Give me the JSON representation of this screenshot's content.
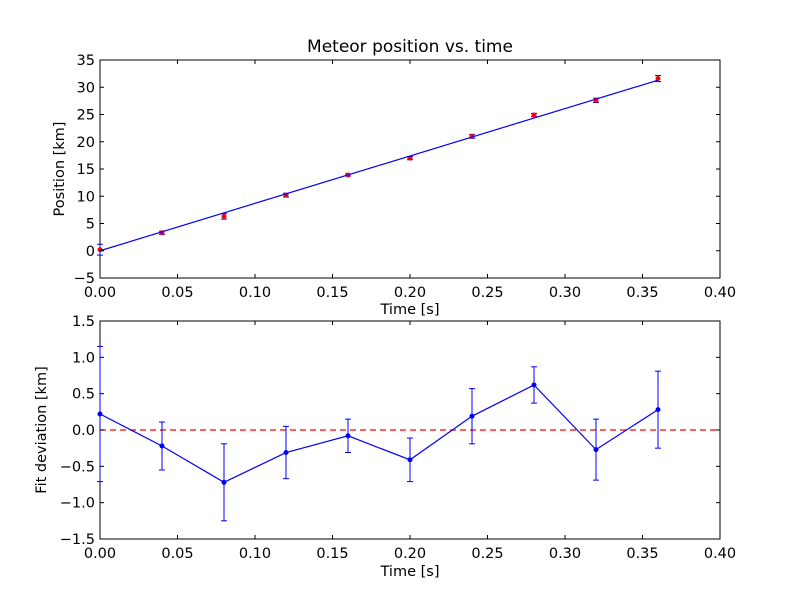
{
  "chart_data": [
    {
      "type": "scatter",
      "title": "Meteor position vs. time",
      "xlabel": "Time [s]",
      "ylabel": "Position [km]",
      "xlim": [
        0.0,
        0.4
      ],
      "ylim": [
        -5,
        35
      ],
      "xticks": [
        0.0,
        0.05,
        0.1,
        0.15,
        0.2,
        0.25,
        0.3,
        0.35,
        0.4
      ],
      "xtick_labels": [
        "0.00",
        "0.05",
        "0.10",
        "0.15",
        "0.20",
        "0.25",
        "0.30",
        "0.35",
        "0.40"
      ],
      "yticks": [
        -5,
        0,
        5,
        10,
        15,
        20,
        25,
        30,
        35
      ],
      "ytick_labels": [
        "−5",
        "0",
        "5",
        "10",
        "15",
        "20",
        "25",
        "30",
        "35"
      ],
      "grid": false,
      "series": [
        {
          "kind": "errorbar-points",
          "color": "#ff0000",
          "x": [
            0.0,
            0.04,
            0.08,
            0.12,
            0.16,
            0.2,
            0.24,
            0.28,
            0.32,
            0.36
          ],
          "y": [
            0.2,
            3.3,
            6.3,
            10.2,
            13.9,
            17.0,
            21.0,
            24.9,
            27.6,
            31.6
          ],
          "yerr": [
            1.0,
            0.3,
            0.5,
            0.35,
            0.2,
            0.3,
            0.35,
            0.3,
            0.4,
            0.55
          ]
        },
        {
          "kind": "fit-line",
          "color": "#0000ff",
          "x": [
            0.0,
            0.36
          ],
          "y": [
            0.0,
            31.3
          ]
        }
      ]
    },
    {
      "type": "line",
      "title": "",
      "xlabel": "Time [s]",
      "ylabel": "Fit deviation [km]",
      "xlim": [
        0.0,
        0.4
      ],
      "ylim": [
        -1.5,
        1.5
      ],
      "xticks": [
        0.0,
        0.05,
        0.1,
        0.15,
        0.2,
        0.25,
        0.3,
        0.35,
        0.4
      ],
      "xtick_labels": [
        "0.00",
        "0.05",
        "0.10",
        "0.15",
        "0.20",
        "0.25",
        "0.30",
        "0.35",
        "0.40"
      ],
      "yticks": [
        -1.5,
        -1.0,
        -0.5,
        0.0,
        0.5,
        1.0,
        1.5
      ],
      "ytick_labels": [
        "−1.5",
        "−1.0",
        "−0.5",
        "0.0",
        "0.5",
        "1.0",
        "1.5"
      ],
      "grid": false,
      "zero_line_color": "#ff0000",
      "series": [
        {
          "kind": "errorbar-line",
          "color": "#0000ff",
          "x": [
            0.0,
            0.04,
            0.08,
            0.12,
            0.16,
            0.2,
            0.24,
            0.28,
            0.32,
            0.36
          ],
          "y": [
            0.22,
            -0.22,
            -0.72,
            -0.31,
            -0.08,
            -0.41,
            0.19,
            0.62,
            -0.27,
            0.28
          ],
          "yerr": [
            0.93,
            0.33,
            0.53,
            0.36,
            0.23,
            0.3,
            0.38,
            0.25,
            0.42,
            0.53
          ]
        }
      ]
    }
  ]
}
